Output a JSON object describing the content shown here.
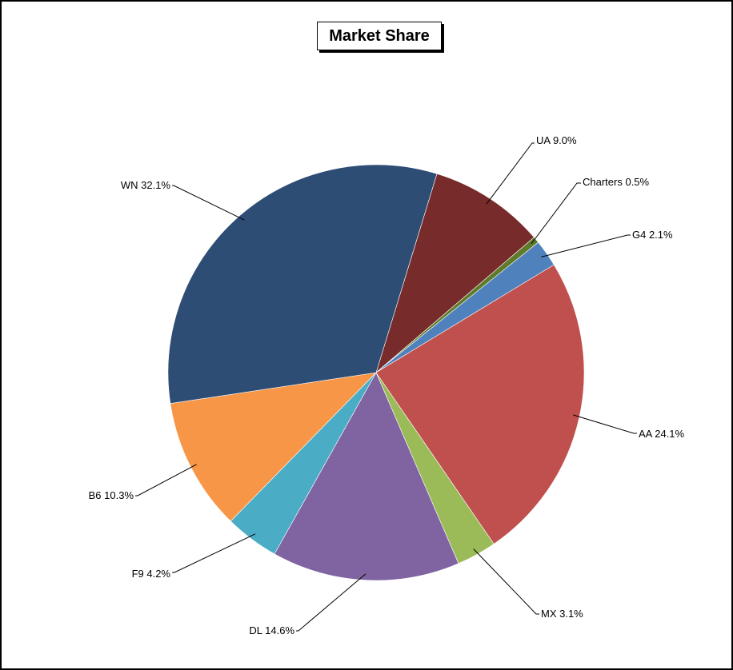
{
  "chart_data": {
    "type": "pie",
    "title": "Market Share",
    "start_category": "UA",
    "direction": "clockwise",
    "categories": [
      "UA",
      "Charters",
      "G4",
      "AA",
      "MX",
      "DL",
      "F9",
      "B6",
      "WN"
    ],
    "values": [
      9.0,
      0.5,
      2.1,
      24.1,
      3.1,
      14.6,
      4.2,
      10.3,
      32.1
    ],
    "labels": [
      "UA 9.0%",
      "Charters 0.5%",
      "G4 2.1%",
      "AA 24.1%",
      "MX 3.1%",
      "DL 14.6%",
      "F9 4.2%",
      "B6 10.3%",
      "WN 32.1%"
    ],
    "colors": [
      "#772B2B",
      "#5E7A2A",
      "#4F81BD",
      "#C0504D",
      "#9BBB59",
      "#8064A2",
      "#4BACC6",
      "#F79646",
      "#2E4D75"
    ],
    "legend": "none"
  }
}
